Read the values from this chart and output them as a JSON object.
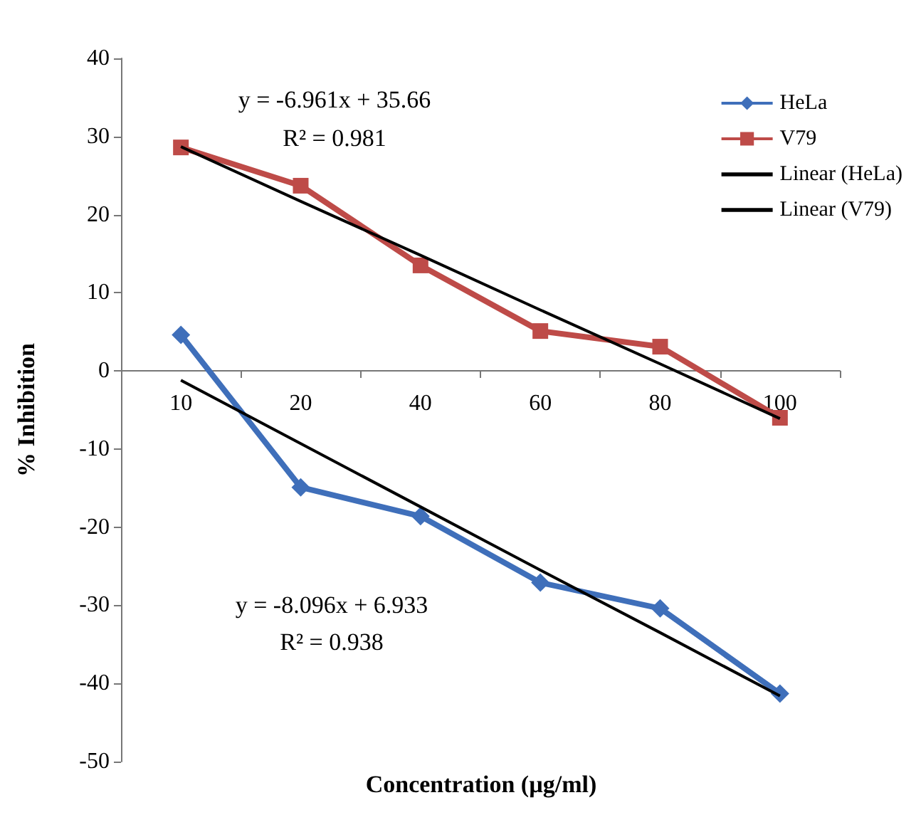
{
  "chart_data": {
    "type": "line",
    "xlabel": "Concentration (µg/ml)",
    "ylabel": "% Inhibition",
    "categories": [
      "10",
      "20",
      "40",
      "60",
      "80",
      "100"
    ],
    "series": [
      {
        "name": "HeLa",
        "color": "#3f6fba",
        "marker": "diamond",
        "values": [
          4.6,
          -14.9,
          -18.6,
          -27.1,
          -30.4,
          -41.3
        ]
      },
      {
        "name": "V79",
        "color": "#be4b48",
        "marker": "square",
        "values": [
          28.6,
          23.7,
          13.5,
          5.1,
          3.1,
          -6.0
        ]
      },
      {
        "name": "Linear (HeLa)",
        "color": "#000000",
        "marker": "none",
        "values": [
          -1.2,
          -9.3,
          -17.4,
          -25.5,
          -33.5,
          -41.6
        ]
      },
      {
        "name": "Linear (V79)",
        "color": "#000000",
        "marker": "none",
        "values": [
          28.7,
          21.7,
          14.8,
          7.8,
          0.9,
          -6.1
        ]
      }
    ],
    "ylim": [
      -50,
      40
    ],
    "yticks": [
      -50,
      -40,
      -30,
      -20,
      -10,
      0,
      10,
      20,
      30,
      40
    ],
    "grid": false,
    "legend": "top right",
    "annotations": [
      "y = -6.961x + 35.66",
      "R² = 0.981",
      "y = -8.096x + 6.933",
      "R² = 0.938"
    ]
  }
}
